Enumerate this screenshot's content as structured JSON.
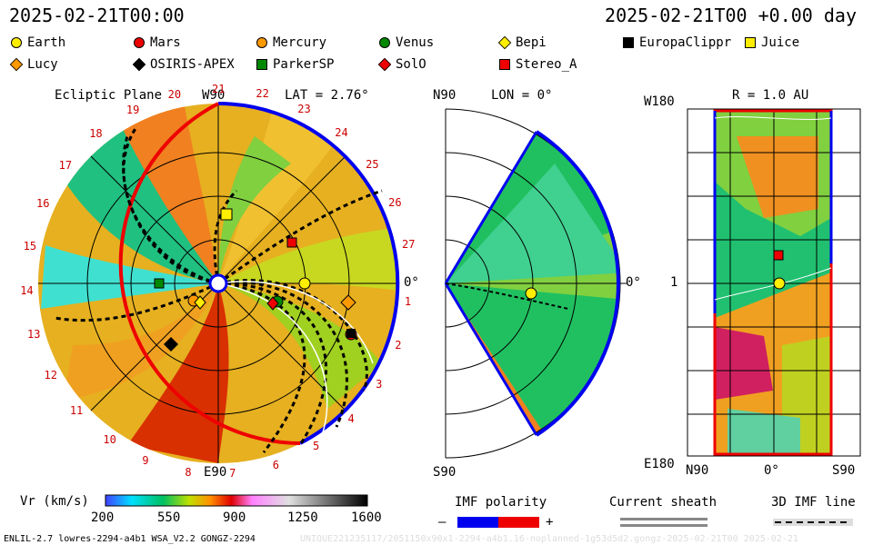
{
  "header": {
    "timestamp_left": "2025-02-21T00:00",
    "timestamp_right": "2025-02-21T00 +0.00 day"
  },
  "legend": [
    {
      "name": "Earth",
      "shape": "circle",
      "color": "#ffee00"
    },
    {
      "name": "Mars",
      "shape": "circle",
      "color": "#ee0000"
    },
    {
      "name": "Mercury",
      "shape": "circle",
      "color": "#ff9900"
    },
    {
      "name": "Venus",
      "shape": "circle",
      "color": "#008800"
    },
    {
      "name": "Bepi",
      "shape": "diamond",
      "color": "#ffee00"
    },
    {
      "name": "EuropaClippr",
      "shape": "square",
      "color": "#000000"
    },
    {
      "name": "Juice",
      "shape": "square",
      "color": "#ffee00"
    },
    {
      "name": "Lucy",
      "shape": "diamond",
      "color": "#ff9900"
    },
    {
      "name": "OSIRIS-APEX",
      "shape": "diamond",
      "color": "#000000"
    },
    {
      "name": "ParkerSP",
      "shape": "square",
      "color": "#008800"
    },
    {
      "name": "SolO",
      "shape": "diamond",
      "color": "#ee0000"
    },
    {
      "name": "Stereo_A",
      "shape": "square",
      "color": "#ee0000"
    }
  ],
  "panels": {
    "ecliptic": {
      "title": "Ecliptic Plane",
      "top_label": "W90",
      "bottom_label": "E90",
      "right_label": "0°",
      "lat_label": "LAT = 2.76°"
    },
    "meridional": {
      "lon_label": "LON = 0°",
      "top_label": "N90",
      "bottom_label": "S90",
      "right_label": "0°"
    },
    "radial": {
      "r_label": "R = 1.0 AU",
      "top_label": "W180",
      "bottom_label": "E180",
      "left_label": "1",
      "x_left": "N90",
      "x_mid": "0°",
      "x_right": "S90"
    }
  },
  "carrington_ticks": [
    "1",
    "2",
    "3",
    "4",
    "5",
    "6",
    "7",
    "8",
    "9",
    "10",
    "11",
    "12",
    "13",
    "14",
    "15",
    "16",
    "17",
    "18",
    "19",
    "20",
    "21",
    "22",
    "23",
    "24",
    "25",
    "26",
    "27"
  ],
  "colorbar": {
    "label": "Vr (km/s)",
    "ticks": [
      "200",
      "550",
      "900",
      "1250",
      "1600"
    ]
  },
  "imf": {
    "label": "IMF polarity",
    "minus": "–",
    "plus": "+",
    "neg_color": "#0000ee",
    "pos_color": "#ee0000"
  },
  "sheath_label": "Current sheath",
  "imf_line_label": "3D IMF line",
  "footer_left": "ENLIL-2.7 lowres-2294-a4b1 WSA_V2.2 GONGZ-2294",
  "footer_right": "UNIQUE221235117/2051150x90x1-2294-a4b1.16-noplanned-1g53d5d2.gongz-2025-02-21T00  2025-02-21",
  "chart_data": {
    "type": "heatmap",
    "title": "",
    "variable": "Vr (km/s)",
    "color_range": [
      200,
      1600
    ],
    "bodies_visible": [
      "Earth",
      "Mars",
      "Mercury",
      "Venus",
      "Bepi",
      "EuropaClippr",
      "Juice",
      "Lucy",
      "OSIRIS-APEX",
      "ParkerSP",
      "SolO",
      "Stereo_A"
    ]
  }
}
